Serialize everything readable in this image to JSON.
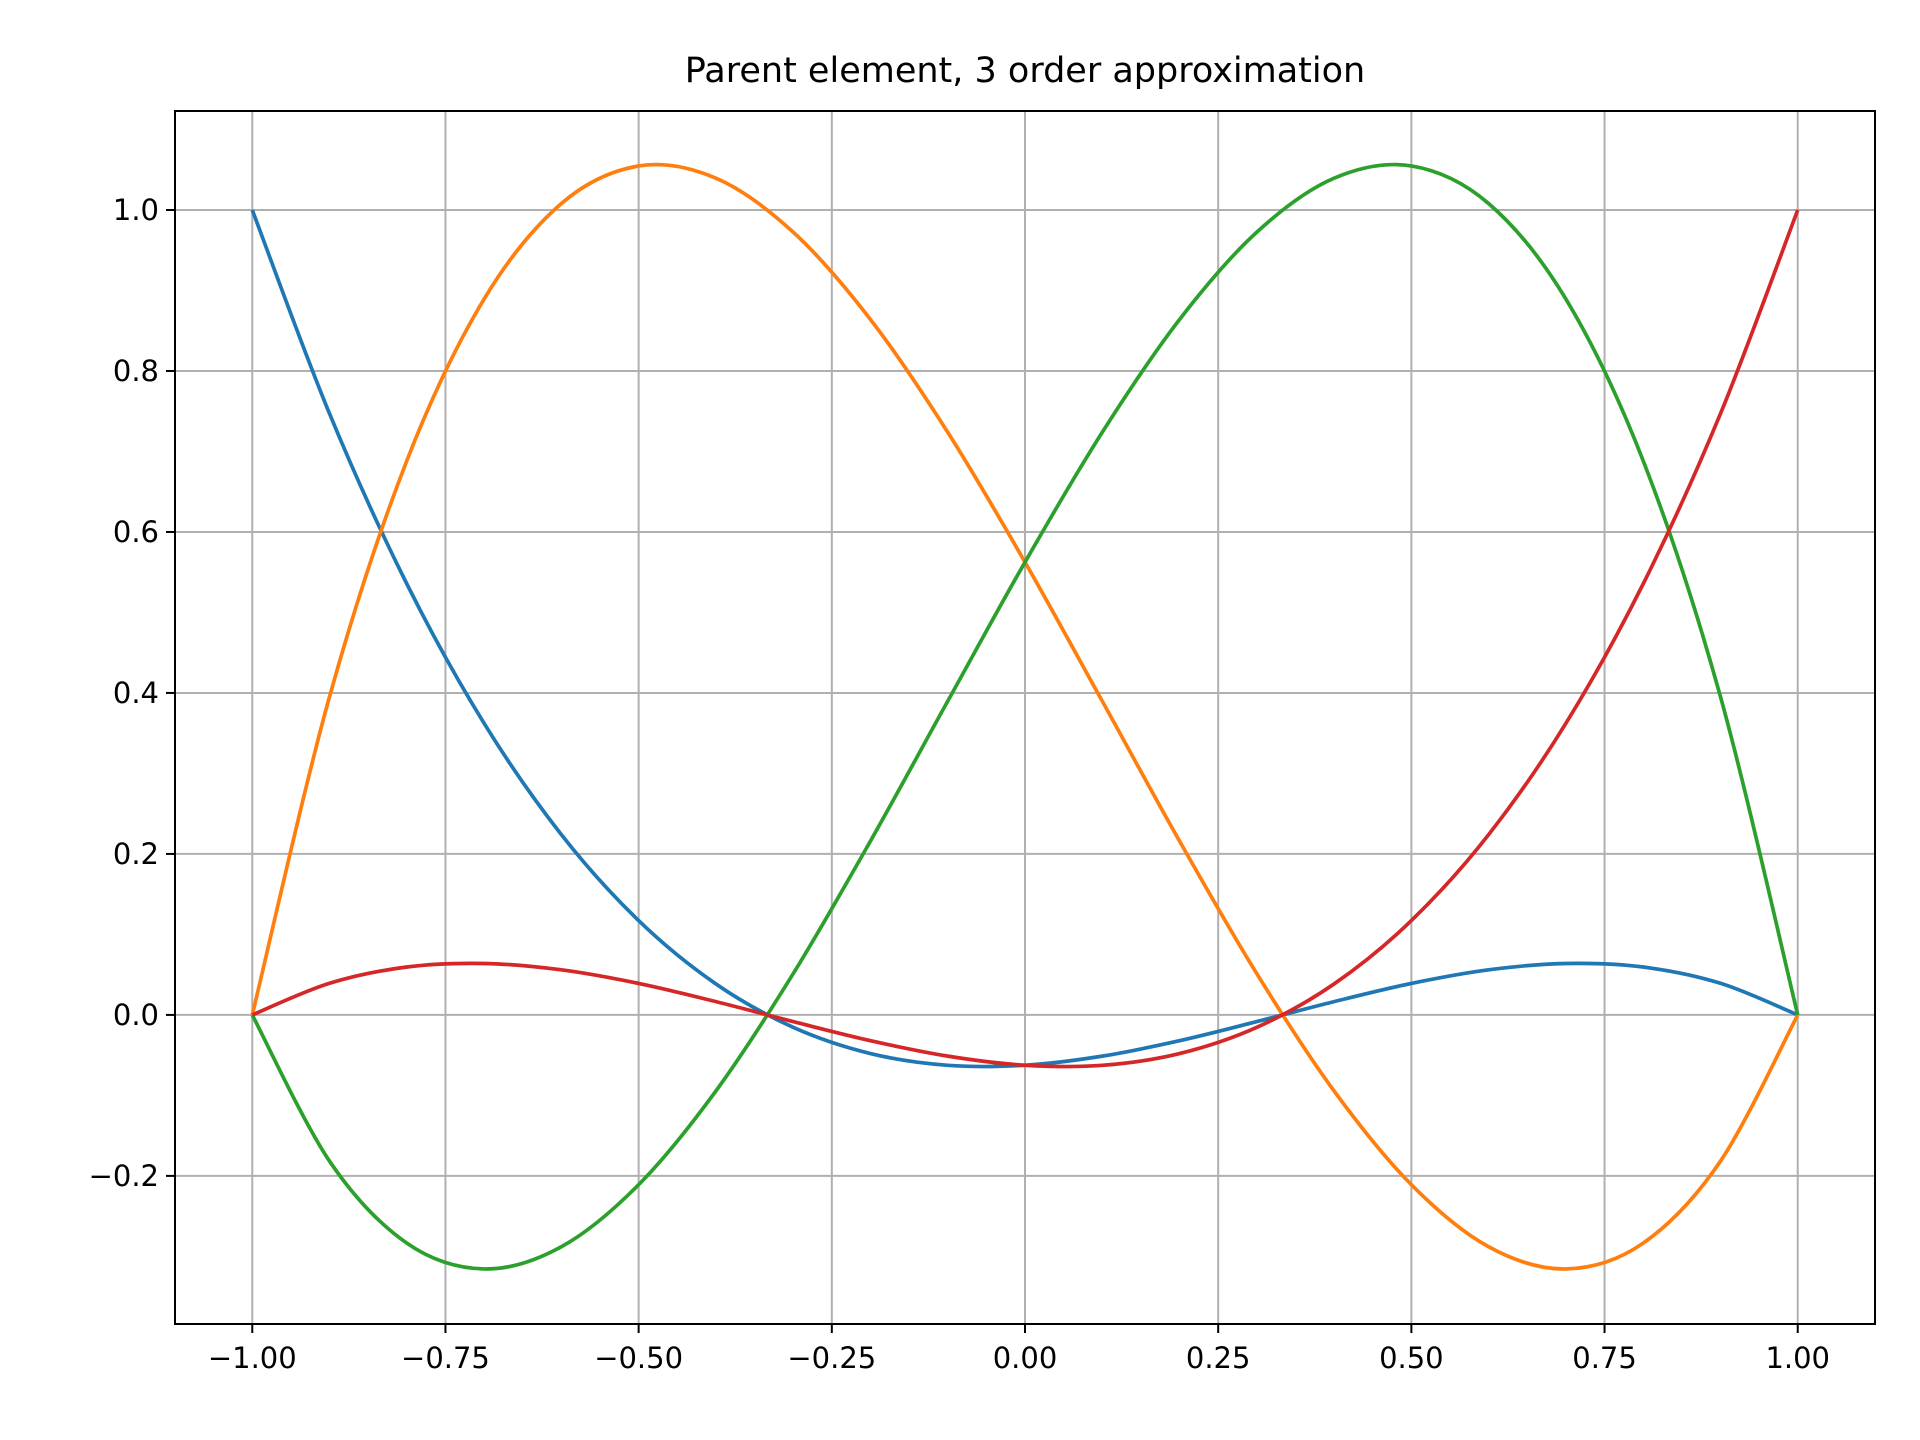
{
  "chart_data": {
    "type": "line",
    "title": "Parent element, 3 order approximation",
    "x": [
      -1,
      -0.9,
      -0.8,
      -0.7,
      -0.6,
      -0.5,
      -0.4,
      -0.3,
      -0.2,
      -0.1,
      0,
      0.1,
      0.2,
      0.3,
      0.4,
      0.5,
      0.6,
      0.7,
      0.8,
      0.9,
      1
    ],
    "series": [
      {
        "color": "#1f77b4",
        "values": [
          1,
          0.7469,
          0.5355,
          0.3623,
          0.224,
          0.1172,
          0.0385,
          -0.0154,
          -0.048,
          -0.0626,
          -0.0625,
          -0.0512,
          -0.032,
          -0.0083,
          0.0165,
          0.0391,
          0.056,
          0.0639,
          0.0595,
          0.0393,
          0
        ]
      },
      {
        "color": "#ff7f0e",
        "values": [
          0,
          0.3954,
          0.6885,
          0.8893,
          1.008,
          1.0547,
          1.0395,
          0.9725,
          0.864,
          0.7239,
          0.5625,
          0.3898,
          0.216,
          0.0512,
          -0.0945,
          -0.2109,
          -0.288,
          -0.3156,
          -0.2835,
          -0.1817,
          0
        ]
      },
      {
        "color": "#2ca02c",
        "values": [
          0,
          -0.1817,
          -0.2835,
          -0.3156,
          -0.288,
          -0.2109,
          -0.0945,
          0.0512,
          0.216,
          0.3898,
          0.5625,
          0.7239,
          0.864,
          0.9725,
          1.0395,
          1.0547,
          1.008,
          0.8893,
          0.6885,
          0.3954,
          0
        ]
      },
      {
        "color": "#d62728",
        "values": [
          0,
          0.0393,
          0.0595,
          0.0639,
          0.056,
          0.0391,
          0.0165,
          -0.0083,
          -0.032,
          -0.0512,
          -0.0625,
          -0.0626,
          -0.048,
          -0.0154,
          0.0385,
          0.1172,
          0.224,
          0.3623,
          0.5355,
          0.7469,
          1
        ]
      }
    ],
    "xlim": [
      -1.1,
      1.1
    ],
    "ylim": [
      -0.384,
      1.123
    ],
    "xticks": [
      {
        "value": -1,
        "label": "−1.00"
      },
      {
        "value": -0.75,
        "label": "−0.75"
      },
      {
        "value": -0.5,
        "label": "−0.50"
      },
      {
        "value": -0.25,
        "label": "−0.25"
      },
      {
        "value": 0,
        "label": "0.00"
      },
      {
        "value": 0.25,
        "label": "0.25"
      },
      {
        "value": 0.5,
        "label": "0.50"
      },
      {
        "value": 0.75,
        "label": "0.75"
      },
      {
        "value": 1,
        "label": "1.00"
      }
    ],
    "yticks": [
      {
        "value": -0.2,
        "label": "−0.2"
      },
      {
        "value": 0,
        "label": "0.0"
      },
      {
        "value": 0.2,
        "label": "0.2"
      },
      {
        "value": 0.4,
        "label": "0.4"
      },
      {
        "value": 0.6,
        "label": "0.6"
      },
      {
        "value": 0.8,
        "label": "0.8"
      },
      {
        "value": 1,
        "label": "1.0"
      }
    ],
    "grid": true
  }
}
